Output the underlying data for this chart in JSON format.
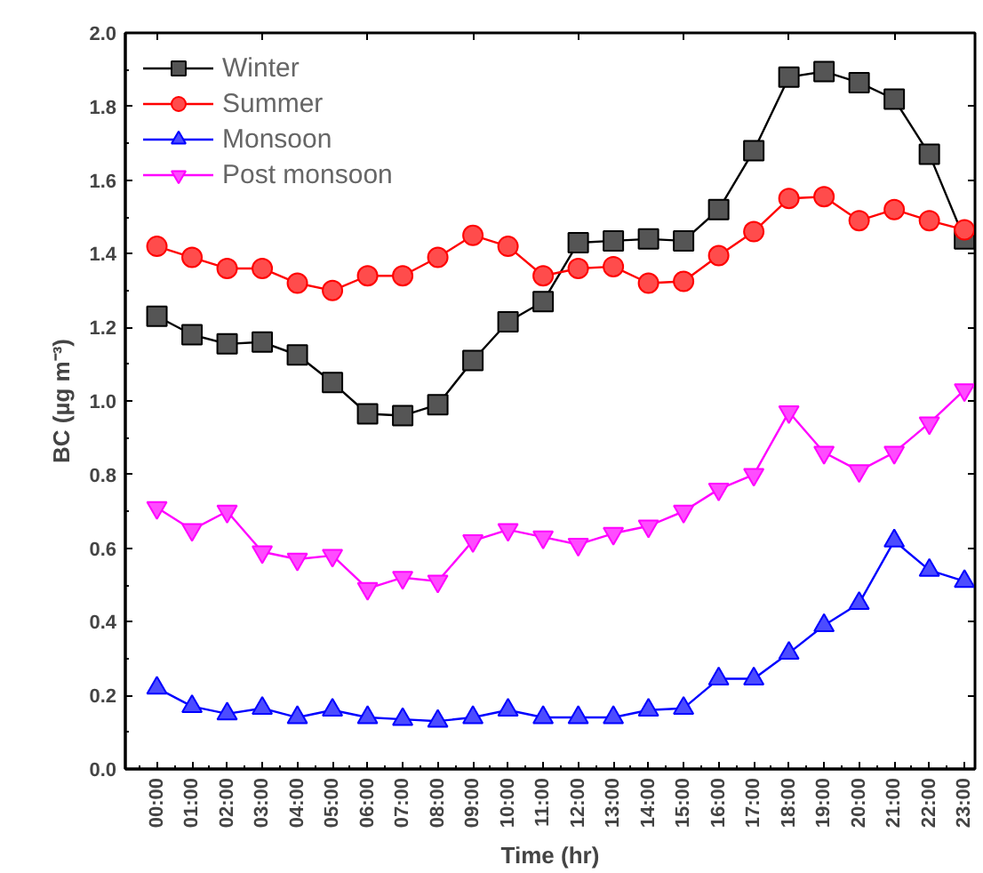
{
  "chart_data": {
    "type": "line",
    "xlabel": "Time (hr)",
    "ylabel": "BC (µg m⁻³)",
    "categories": [
      "00:00",
      "01:00",
      "02:00",
      "03:00",
      "04:00",
      "05:00",
      "06:00",
      "07:00",
      "08:00",
      "09:00",
      "10:00",
      "11:00",
      "12:00",
      "13:00",
      "14:00",
      "15:00",
      "16:00",
      "17:00",
      "18:00",
      "19:00",
      "20:00",
      "21:00",
      "22:00",
      "23:00"
    ],
    "ylim": [
      0,
      2.0
    ],
    "yticks": [
      {
        "value": 0,
        "label": "0.0"
      },
      {
        "value": 0.2,
        "label": "0.2"
      },
      {
        "value": 0.4,
        "label": "0.4"
      },
      {
        "value": 0.6,
        "label": "0.6"
      },
      {
        "value": 0.8,
        "label": "0.8"
      },
      {
        "value": 1.0,
        "label": "1.0"
      },
      {
        "value": 1.2,
        "label": "1.2"
      },
      {
        "value": 1.4,
        "label": "1.4"
      },
      {
        "value": 1.6,
        "label": "1.6"
      },
      {
        "value": 1.8,
        "label": "1.8"
      },
      {
        "value": 2.0,
        "label": "2.0"
      }
    ],
    "grid": false,
    "legend": "top left",
    "line_style": "solid",
    "series": [
      {
        "name": "Winter",
        "color": "#000000",
        "marker": "square",
        "values": [
          1.23,
          1.18,
          1.155,
          1.16,
          1.125,
          1.05,
          0.965,
          0.96,
          0.99,
          1.11,
          1.215,
          1.27,
          1.43,
          1.435,
          1.44,
          1.435,
          1.52,
          1.68,
          1.88,
          1.895,
          1.865,
          1.82,
          1.67,
          1.44
        ]
      },
      {
        "name": "Summer",
        "color": "#ff0000",
        "marker": "circle",
        "values": [
          1.42,
          1.39,
          1.36,
          1.36,
          1.32,
          1.3,
          1.34,
          1.34,
          1.39,
          1.45,
          1.42,
          1.34,
          1.36,
          1.365,
          1.32,
          1.325,
          1.395,
          1.46,
          1.55,
          1.555,
          1.49,
          1.52,
          1.49,
          1.465
        ]
      },
      {
        "name": "Monsoon",
        "color": "#0000ff",
        "marker": "triangle",
        "values": [
          0.22,
          0.17,
          0.15,
          0.165,
          0.14,
          0.16,
          0.14,
          0.135,
          0.13,
          0.14,
          0.16,
          0.14,
          0.14,
          0.14,
          0.16,
          0.165,
          0.245,
          0.245,
          0.315,
          0.39,
          0.45,
          0.62,
          0.54,
          0.51
        ]
      },
      {
        "name": "Post monsoon",
        "color": "#ff00ff",
        "marker": "triangle",
        "values": [
          0.71,
          0.65,
          0.7,
          0.59,
          0.57,
          0.58,
          0.49,
          0.52,
          0.51,
          0.62,
          0.65,
          0.63,
          0.61,
          0.64,
          0.66,
          0.7,
          0.76,
          0.8,
          0.97,
          0.86,
          0.81,
          0.86,
          0.94,
          1.03
        ]
      }
    ]
  }
}
